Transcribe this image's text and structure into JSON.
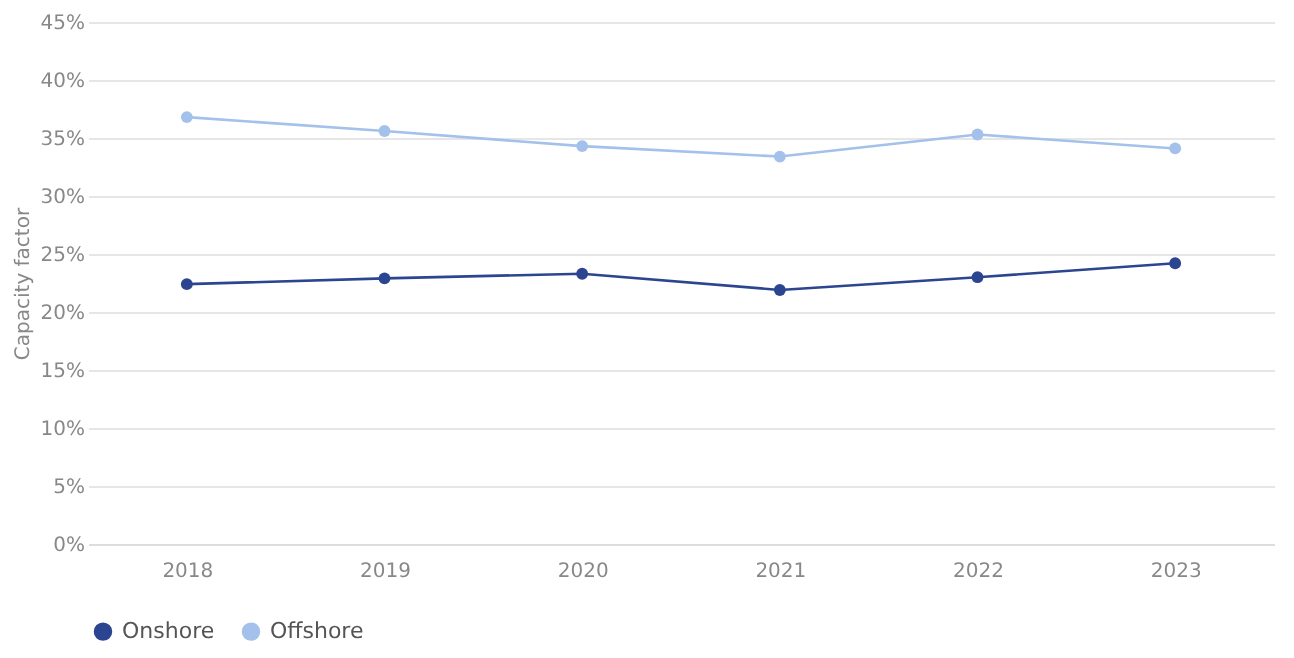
{
  "chart_data": {
    "type": "line",
    "ylabel": "Capacity factor",
    "categories": [
      "2018",
      "2019",
      "2020",
      "2021",
      "2022",
      "2023"
    ],
    "series": [
      {
        "name": "Onshore",
        "color": "#2b4590",
        "values": [
          22.4,
          22.9,
          23.3,
          21.9,
          23.0,
          24.2
        ]
      },
      {
        "name": "Offshore",
        "color": "#a3c1ea",
        "values": [
          36.8,
          35.6,
          34.3,
          33.4,
          35.3,
          34.1
        ]
      }
    ],
    "ylim": [
      0,
      45
    ],
    "yticks": [
      {
        "value": 0,
        "label": "0%"
      },
      {
        "value": 5,
        "label": "5%"
      },
      {
        "value": 10,
        "label": "10%"
      },
      {
        "value": 15,
        "label": "15%"
      },
      {
        "value": 20,
        "label": "20%"
      },
      {
        "value": 25,
        "label": "25%"
      },
      {
        "value": 30,
        "label": "30%"
      },
      {
        "value": 35,
        "label": "35%"
      },
      {
        "value": 40,
        "label": "40%"
      },
      {
        "value": 45,
        "label": "45%"
      }
    ],
    "grid": "y",
    "legend": "bottom",
    "marker": "circle",
    "line_style": "solid"
  }
}
